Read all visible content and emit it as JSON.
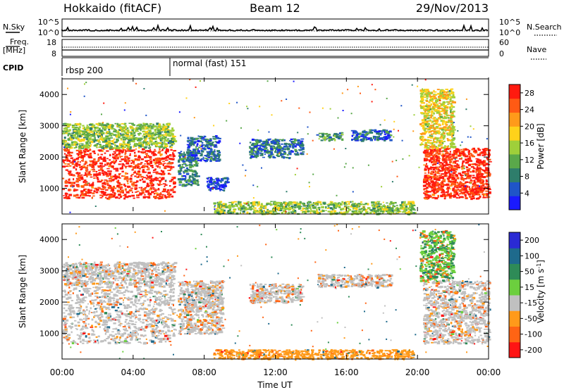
{
  "header": {
    "station": "Hokkaido (fitACF)",
    "beam": "Beam 12",
    "date": "29/Nov/2013"
  },
  "status_panels": {
    "nsky_label": "N.Sky",
    "nsky_ticks": [
      "10^5",
      "10^0"
    ],
    "nsearch_label": "N.Search",
    "nsearch_ticks": [
      "10^5",
      "10^0"
    ],
    "freq_label": [
      "Freq.",
      "[MHz]"
    ],
    "freq_ticks": [
      "18",
      "8"
    ],
    "nave_label": "Nave",
    "nave_ticks": [
      "60",
      "0"
    ],
    "cpid_label": "CPID",
    "cpid_modes": [
      {
        "name": "rbsp 200",
        "start_hour": 0
      },
      {
        "name": "normal (fast) 151",
        "start_hour": 6
      }
    ]
  },
  "chart_data": [
    {
      "type": "heatmap",
      "panel": "power",
      "xlabel": "",
      "ylabel": "Slant Range [km]",
      "x_ticks": [
        "00:00",
        "04:00",
        "08:00",
        "12:00",
        "16:00",
        "20:00",
        "00:00"
      ],
      "xlim_hours": [
        0,
        24
      ],
      "y_ticks": [
        1000,
        2000,
        3000,
        4000
      ],
      "ylim_km": [
        180,
        4500
      ],
      "colorbar": {
        "label": "Power [dB]",
        "ticks": [
          4,
          8,
          12,
          16,
          20,
          24,
          28
        ],
        "range": [
          0,
          30
        ],
        "colors": [
          "#1a1aff",
          "#1f55c8",
          "#2e7d6b",
          "#5aa84a",
          "#9fcf3a",
          "#ffd21a",
          "#ff9a1a",
          "#ff5a14",
          "#ff1a0f"
        ]
      },
      "regions": [
        {
          "x": [
            0,
            6.3
          ],
          "y": [
            700,
            2300
          ],
          "level": 28
        },
        {
          "x": [
            0,
            6.3
          ],
          "y": [
            2300,
            3100
          ],
          "level": 14
        },
        {
          "x": [
            6.5,
            7.6
          ],
          "y": [
            1100,
            2200
          ],
          "level": 8
        },
        {
          "x": [
            7.0,
            8.8
          ],
          "y": [
            1900,
            2700
          ],
          "level": 6
        },
        {
          "x": [
            8.1,
            9.3
          ],
          "y": [
            950,
            1400
          ],
          "level": 4
        },
        {
          "x": [
            10.5,
            13.5
          ],
          "y": [
            2000,
            2600
          ],
          "level": 7
        },
        {
          "x": [
            14.3,
            15.8
          ],
          "y": [
            2550,
            2800
          ],
          "level": 10
        },
        {
          "x": [
            16.2,
            18.5
          ],
          "y": [
            2550,
            2900
          ],
          "level": 6
        },
        {
          "x": [
            8.5,
            19.8
          ],
          "y": [
            200,
            600
          ],
          "level": 14
        },
        {
          "x": [
            20.3,
            24
          ],
          "y": [
            700,
            2300
          ],
          "level": 28
        },
        {
          "x": [
            20.1,
            22.0
          ],
          "y": [
            2300,
            4200
          ],
          "level": 18
        }
      ]
    },
    {
      "type": "heatmap",
      "panel": "velocity",
      "xlabel": "Time UT",
      "ylabel": "Slant Range [km]",
      "x_ticks": [
        "00:00",
        "04:00",
        "08:00",
        "12:00",
        "16:00",
        "20:00",
        "00:00"
      ],
      "xlim_hours": [
        0,
        24
      ],
      "y_ticks": [
        1000,
        2000,
        3000,
        4000
      ],
      "ylim_km": [
        180,
        4500
      ],
      "colorbar": {
        "label": "Velocity [m s^-1]",
        "ticks": [
          200,
          100,
          50,
          15,
          -15,
          -50,
          -100,
          -200
        ],
        "colors": [
          "#2a2ad4",
          "#1e6a8c",
          "#2e8b57",
          "#6ccf3e",
          "#c0c0c0",
          "#ff9a1a",
          "#ff6414",
          "#ff1414"
        ]
      },
      "regions": [
        {
          "x": [
            0,
            6.3
          ],
          "y": [
            700,
            2600
          ],
          "level": 0
        },
        {
          "x": [
            0,
            6.3
          ],
          "y": [
            2600,
            3300
          ],
          "level": 0
        },
        {
          "x": [
            6.5,
            9.0
          ],
          "y": [
            1000,
            2700
          ],
          "level": 0
        },
        {
          "x": [
            10.5,
            13.5
          ],
          "y": [
            2000,
            2600
          ],
          "level": 0
        },
        {
          "x": [
            14.3,
            18.5
          ],
          "y": [
            2500,
            2900
          ],
          "level": 0
        },
        {
          "x": [
            8.5,
            19.8
          ],
          "y": [
            200,
            500
          ],
          "level": -40
        },
        {
          "x": [
            20.3,
            24
          ],
          "y": [
            700,
            2700
          ],
          "level": 0
        },
        {
          "x": [
            20.1,
            22.0
          ],
          "y": [
            2700,
            4300
          ],
          "level": 30
        }
      ]
    }
  ]
}
